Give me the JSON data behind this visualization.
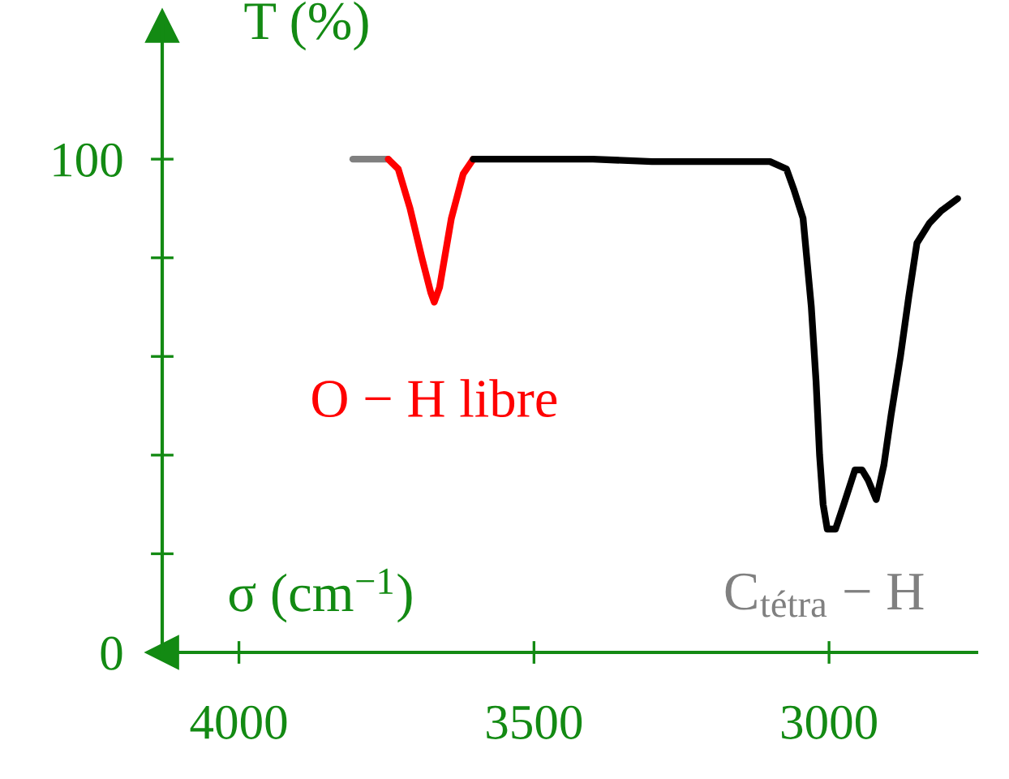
{
  "chart_data": {
    "type": "line",
    "xlabel": "σ (cm$^{−1}$)",
    "ylabel": "T (%)",
    "xlim": [
      4130,
      2750
    ],
    "xticks": [
      4000,
      3500,
      3000
    ],
    "ylim": [
      0,
      127
    ],
    "yticks": [
      0,
      {
        "value": 20,
        "label": null
      },
      {
        "value": 40,
        "label": null
      },
      {
        "value": 60,
        "label": null
      },
      {
        "value": 80,
        "label": null
      },
      100
    ],
    "grid": false,
    "marker": "none",
    "line_style": "solid",
    "series": [
      {
        "color": "#808080",
        "x": [
          3807,
          3747
        ],
        "values": [
          100,
          100
        ]
      },
      {
        "color": "#ff0000",
        "x": [
          3747,
          3730,
          3710,
          3690,
          3675,
          3669,
          3660,
          3640,
          3620,
          3603
        ],
        "values": [
          100,
          98,
          90,
          80,
          73,
          71,
          74,
          88,
          97,
          100
        ]
      },
      {
        "color": "#000000",
        "x": [
          3603,
          3560,
          3400,
          3300,
          3200,
          3100,
          3072,
          3060,
          3044,
          3030,
          3022,
          3016,
          3010,
          3003,
          2989,
          2975,
          2956,
          2944,
          2934,
          2920,
          2907,
          2895,
          2879,
          2865,
          2851,
          2830,
          2810,
          2782
        ],
        "values": [
          100,
          100,
          100,
          99.5,
          99.5,
          99.5,
          98,
          94,
          88,
          70,
          55,
          40,
          30,
          25,
          25,
          30,
          37,
          37,
          35,
          31,
          38,
          48,
          60,
          72,
          83,
          87,
          89.5,
          92
        ]
      }
    ],
    "annotations": [
      {
        "text": "O − H libre",
        "x": 3669,
        "y": 71
      },
      {
        "text": "C$_{tétra}$ − H",
        "x": 2989,
        "y": 25
      }
    ]
  }
}
